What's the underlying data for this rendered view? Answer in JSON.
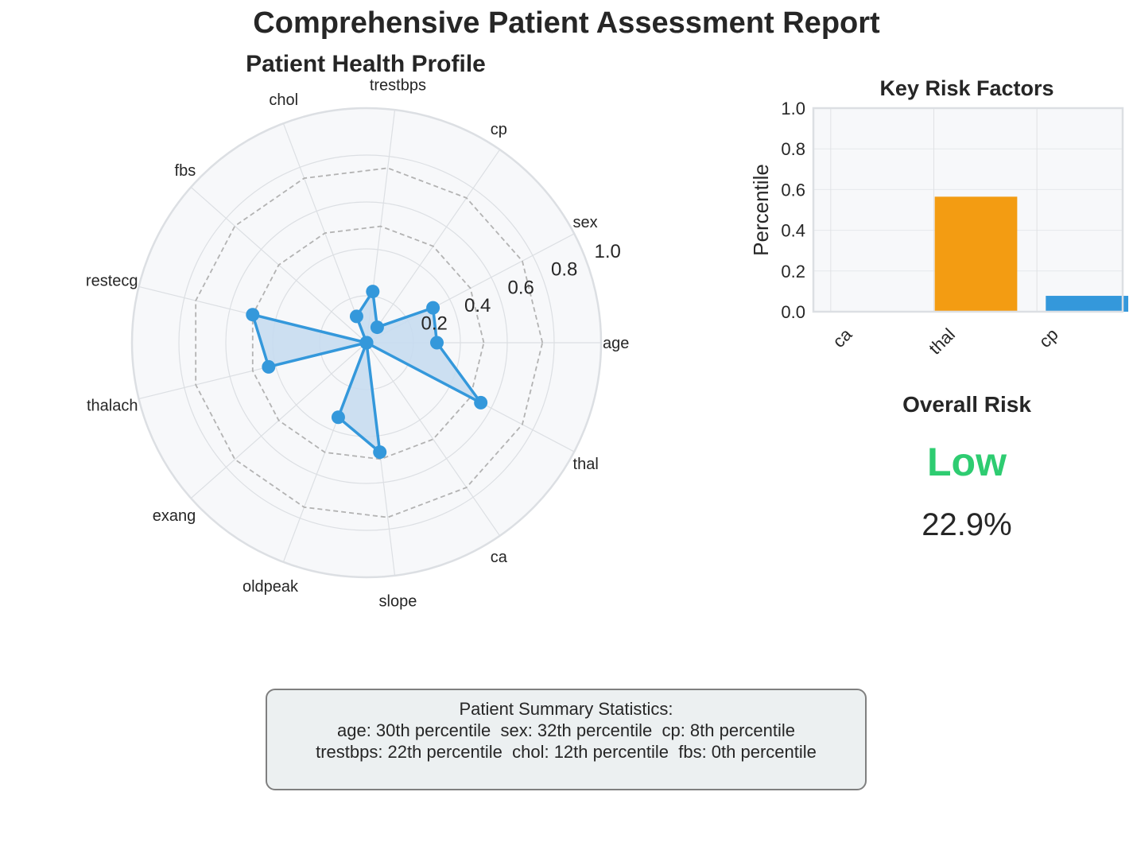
{
  "figure": {
    "title": "Comprehensive Patient Assessment Report"
  },
  "chart_data": [
    {
      "type": "radar",
      "title": "Patient Health Profile",
      "categories": [
        "age",
        "sex",
        "cp",
        "trestbps",
        "chol",
        "fbs",
        "restecg",
        "thalach",
        "exang",
        "oldpeak",
        "slope",
        "ca",
        "thal"
      ],
      "values": [
        0.3,
        0.32,
        0.08,
        0.22,
        0.12,
        0.0,
        0.5,
        0.43,
        0.0,
        0.34,
        0.47,
        0.0,
        0.55
      ],
      "radial_ticks": [
        "0.2",
        "0.4",
        "0.6",
        "0.8",
        "1.0"
      ],
      "reference_rings": [
        0.5,
        0.75
      ],
      "rlim": [
        0,
        1
      ],
      "series_color": "#3498db",
      "fill_color": "#c6dcf0"
    },
    {
      "type": "bar",
      "title": "Key Risk Factors",
      "categories": [
        "ca",
        "thal",
        "cp"
      ],
      "values": [
        0.0,
        0.565,
        0.078
      ],
      "colors": [
        "#3498db",
        "#f39c12",
        "#3498db"
      ],
      "ylabel": "Percentile",
      "xlabel": "",
      "ylim": [
        0,
        1
      ],
      "yticks": [
        "0.0",
        "0.2",
        "0.4",
        "0.6",
        "0.8",
        "1.0"
      ],
      "grid": true
    }
  ],
  "risk": {
    "heading": "Overall Risk",
    "level": "Low",
    "level_color": "#2ecc71",
    "percent": "22.9%"
  },
  "summary": {
    "title": "Patient Summary Statistics:",
    "line1": "age: 30th percentile  sex: 32th percentile  cp: 8th percentile",
    "line2": "trestbps: 22th percentile  chol: 12th percentile  fbs: 0th percentile"
  }
}
